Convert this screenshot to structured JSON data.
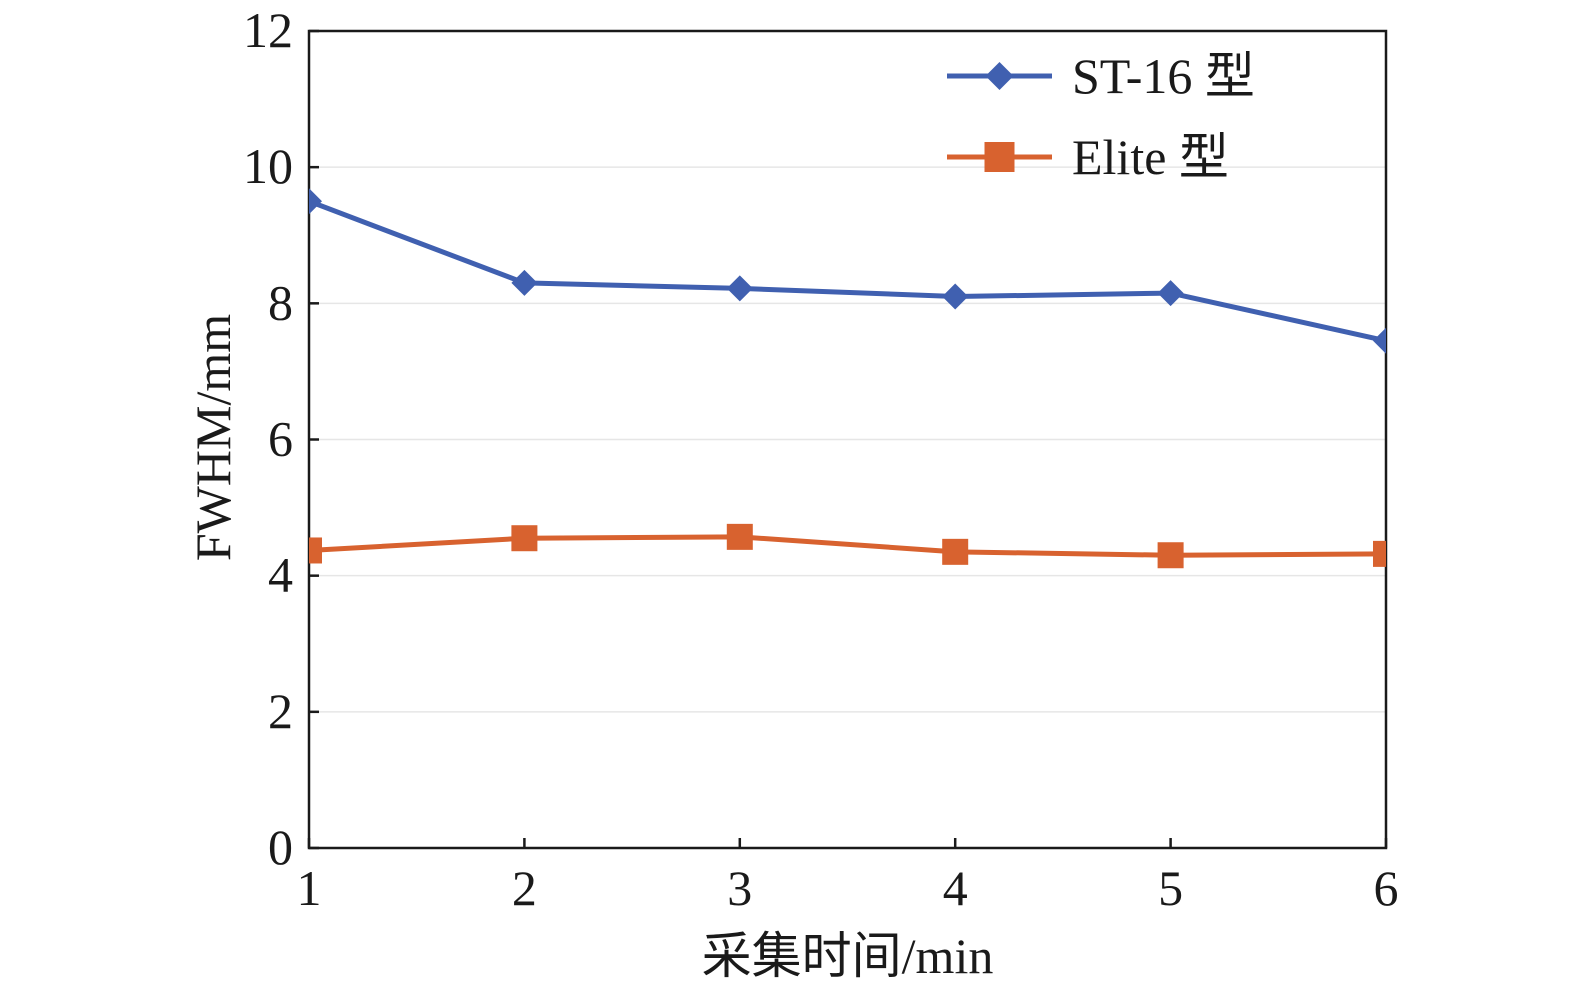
{
  "chart_data": {
    "type": "line",
    "title": "",
    "xlabel": "采集时间/min",
    "ylabel": "FWHM/mm",
    "x": [
      1,
      2,
      3,
      4,
      5,
      6
    ],
    "xlim": [
      1,
      6
    ],
    "ylim": [
      0,
      12
    ],
    "x_ticks": [
      1,
      2,
      3,
      4,
      5,
      6
    ],
    "y_ticks": [
      0,
      2,
      4,
      6,
      8,
      10,
      12
    ],
    "grid": true,
    "legend_position": "top-right",
    "series": [
      {
        "name": "ST-16 型",
        "marker": "diamond",
        "color": "#4060b0",
        "values": [
          9.5,
          8.3,
          8.22,
          8.1,
          8.15,
          7.45
        ]
      },
      {
        "name": "Elite 型",
        "marker": "square",
        "color": "#d8622f",
        "values": [
          4.37,
          4.55,
          4.57,
          4.35,
          4.3,
          4.32
        ]
      }
    ]
  }
}
